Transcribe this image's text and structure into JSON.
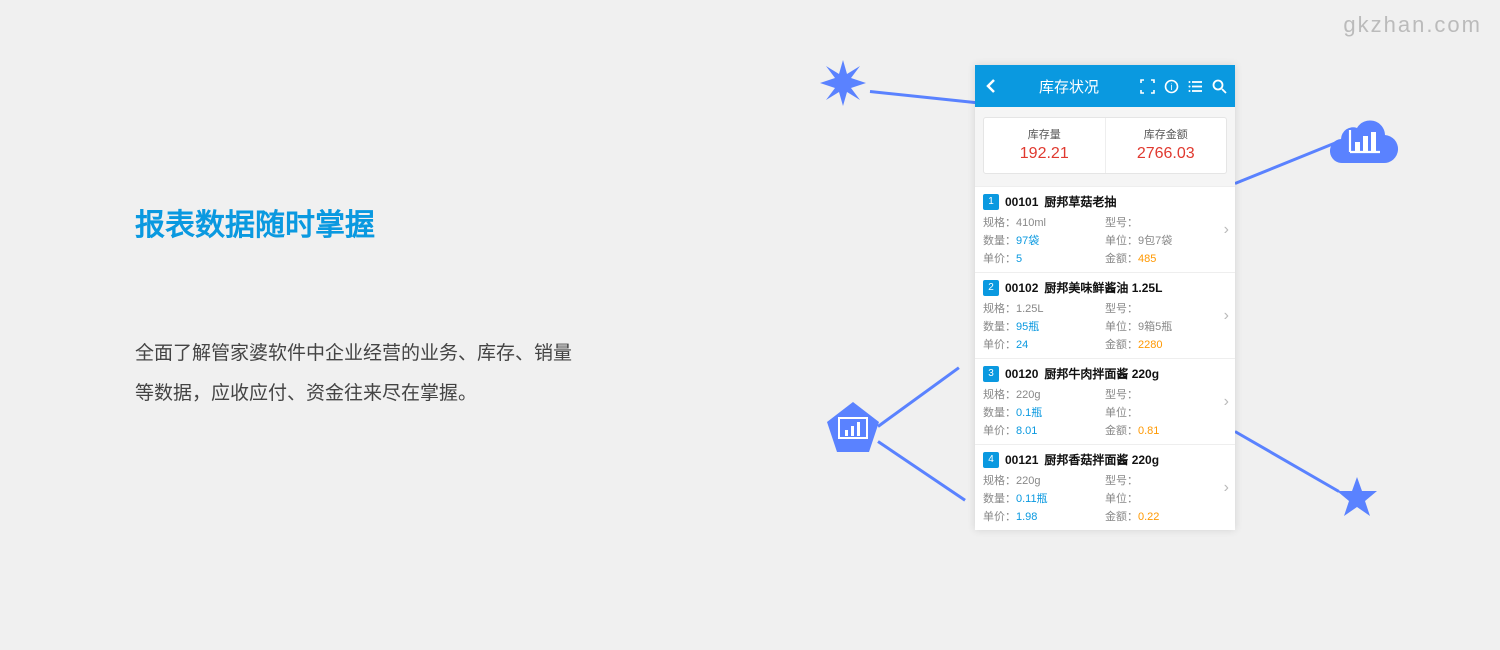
{
  "watermark": "gkzhan.com",
  "title": "报表数据随时掌握",
  "description": "全面了解管家婆软件中企业经营的业务、库存、销量等数据，应收应付、资金往来尽在掌握。",
  "colors": {
    "primary": "#0a99e0",
    "accent_line": "#5a82ff",
    "value_red": "#e0392f",
    "value_blue": "#0a99e0",
    "value_orange": "#ff9800",
    "bg": "#f0f0f0"
  },
  "phone": {
    "header_title": "库存状况",
    "summary": [
      {
        "label": "库存量",
        "value": "192.21"
      },
      {
        "label": "库存金额",
        "value": "2766.03"
      }
    ],
    "item_field_labels": {
      "spec": "规格：",
      "model": "型号：",
      "qty": "数量：",
      "unit": "单位：",
      "price": "单价：",
      "amount": "金额："
    },
    "items": [
      {
        "idx": "1",
        "code": "00101",
        "name": "厨邦草菇老抽",
        "spec": "410ml",
        "model": "",
        "qty": "97袋",
        "unit": "9包7袋",
        "price": "5",
        "amount": "485"
      },
      {
        "idx": "2",
        "code": "00102",
        "name": "厨邦美味鲜酱油 1.25L",
        "spec": "1.25L",
        "model": "",
        "qty": "95瓶",
        "unit": "9箱5瓶",
        "price": "24",
        "amount": "2280"
      },
      {
        "idx": "3",
        "code": "00120",
        "name": "厨邦牛肉拌面酱 220g",
        "spec": "220g",
        "model": "",
        "qty": "0.1瓶",
        "unit": "",
        "price": "8.01",
        "amount": "0.81"
      },
      {
        "idx": "4",
        "code": "00121",
        "name": "厨邦香菇拌面酱 220g",
        "spec": "220g",
        "model": "",
        "qty": "0.11瓶",
        "unit": "",
        "price": "1.98",
        "amount": "0.22"
      }
    ]
  }
}
